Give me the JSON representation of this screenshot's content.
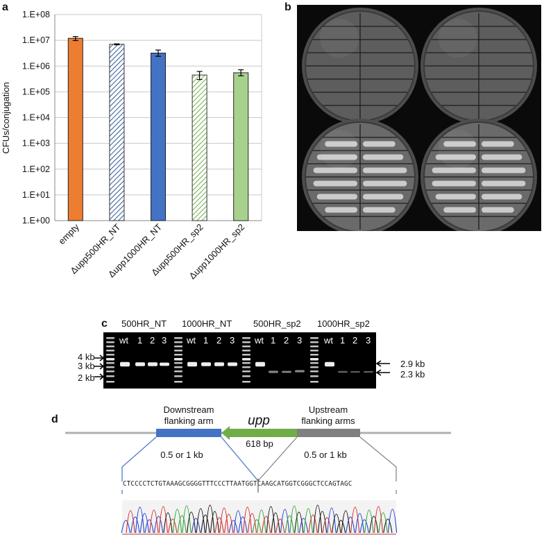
{
  "panels": {
    "a": "a",
    "b": "b",
    "c": "c",
    "d": "d"
  },
  "chart_data": {
    "type": "bar",
    "ylabel": "CFUs/conjugation",
    "yscale": "log",
    "ylim": [
      1,
      100000000
    ],
    "yticks": [
      "1.E+00",
      "1.E+01",
      "1.E+02",
      "1.E+03",
      "1.E+04",
      "1.E+05",
      "1.E+06",
      "1.E+07",
      "1.E+08"
    ],
    "categories": [
      "empty",
      "Δupp500HR_NT",
      "Δupp1000HR_NT",
      "Δupp500HR_sp2",
      "Δupp1000HR_sp2"
    ],
    "values": [
      12000000,
      7000000,
      3200000,
      450000,
      550000
    ],
    "errors_low": [
      9800000,
      6700000,
      2400000,
      300000,
      420000
    ],
    "errors_high": [
      14000000,
      7300000,
      4200000,
      620000,
      720000
    ],
    "colors": [
      "#ED7D31",
      "#2E5597",
      "#4472C4",
      "#70AD47",
      "#A9D18E"
    ],
    "patterns": [
      "solid",
      "hatched",
      "solid",
      "hatched",
      "solid"
    ],
    "grid": "horizontal"
  },
  "gel": {
    "groups": [
      "500HR_NT",
      "1000HR_NT",
      "500HR_sp2",
      "1000HR_sp2"
    ],
    "lanes": [
      "wt",
      "1",
      "2",
      "3"
    ],
    "ladder": [
      "4 kb",
      "3 kb",
      "2 kb"
    ],
    "sizes": [
      "2.9 kb",
      "2.3 kb"
    ]
  },
  "diagram": {
    "down_arm": "Downstream\nflanking arm",
    "gene": "upp",
    "gene_len": "618 bp",
    "up_arm": "Upstream\nflanking arms",
    "left_len": "0.5 or 1 kb",
    "right_len": "0.5 or 1 kb",
    "sequence": "CTCCCCTCTGTAAAGCGGGGTTTCCCTTAATGGTCAAGCATGGTCGGGCTCCAGTAGC"
  }
}
